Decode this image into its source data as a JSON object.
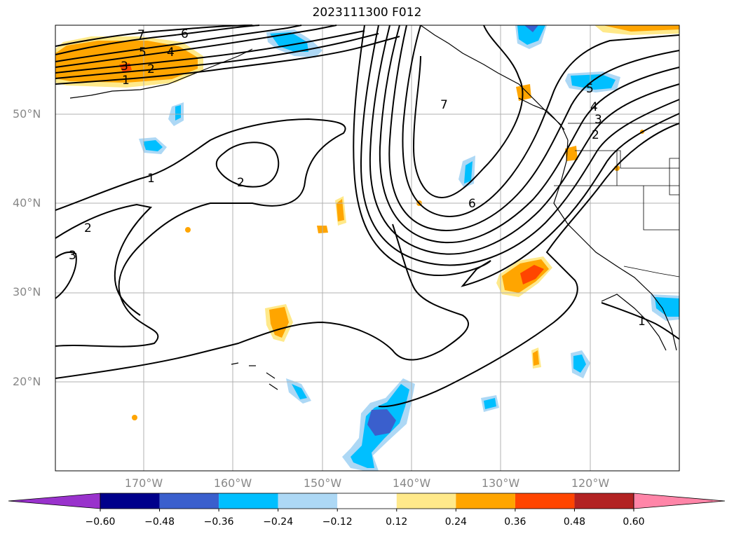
{
  "title": "2023111300 F012",
  "lat_labels": [
    "50°N",
    "40°N",
    "30°N",
    "20°N"
  ],
  "lon_labels": [
    "170°W",
    "160°W",
    "150°W",
    "140°W",
    "130°W",
    "120°W"
  ],
  "colorbar": {
    "ticks": [
      "−0.60",
      "−0.48",
      "−0.36",
      "−0.24",
      "−0.12",
      "0.12",
      "0.24",
      "0.36",
      "0.48",
      "0.60"
    ],
    "colors": [
      "#9932cc",
      "#00008b",
      "#3a5fcd",
      "#00bfff",
      "#add8f5",
      "#ffffff",
      "#ffe98a",
      "#ffa500",
      "#ff4500",
      "#b22222",
      "#ff85a8"
    ]
  },
  "contour_labels": [
    "7",
    "6",
    "5",
    "4",
    "3",
    "2",
    "1",
    "1",
    "2",
    "2",
    "3",
    "7",
    "6",
    "5",
    "4",
    "3",
    "2",
    "1"
  ],
  "colors": {
    "orange": "#ffa500",
    "yellow": "#ffe98a",
    "red": "#ff4500",
    "cyan": "#00bfff",
    "lightblue": "#add8f5",
    "blue": "#3a5fcd",
    "grid": "#b0b0b0"
  }
}
